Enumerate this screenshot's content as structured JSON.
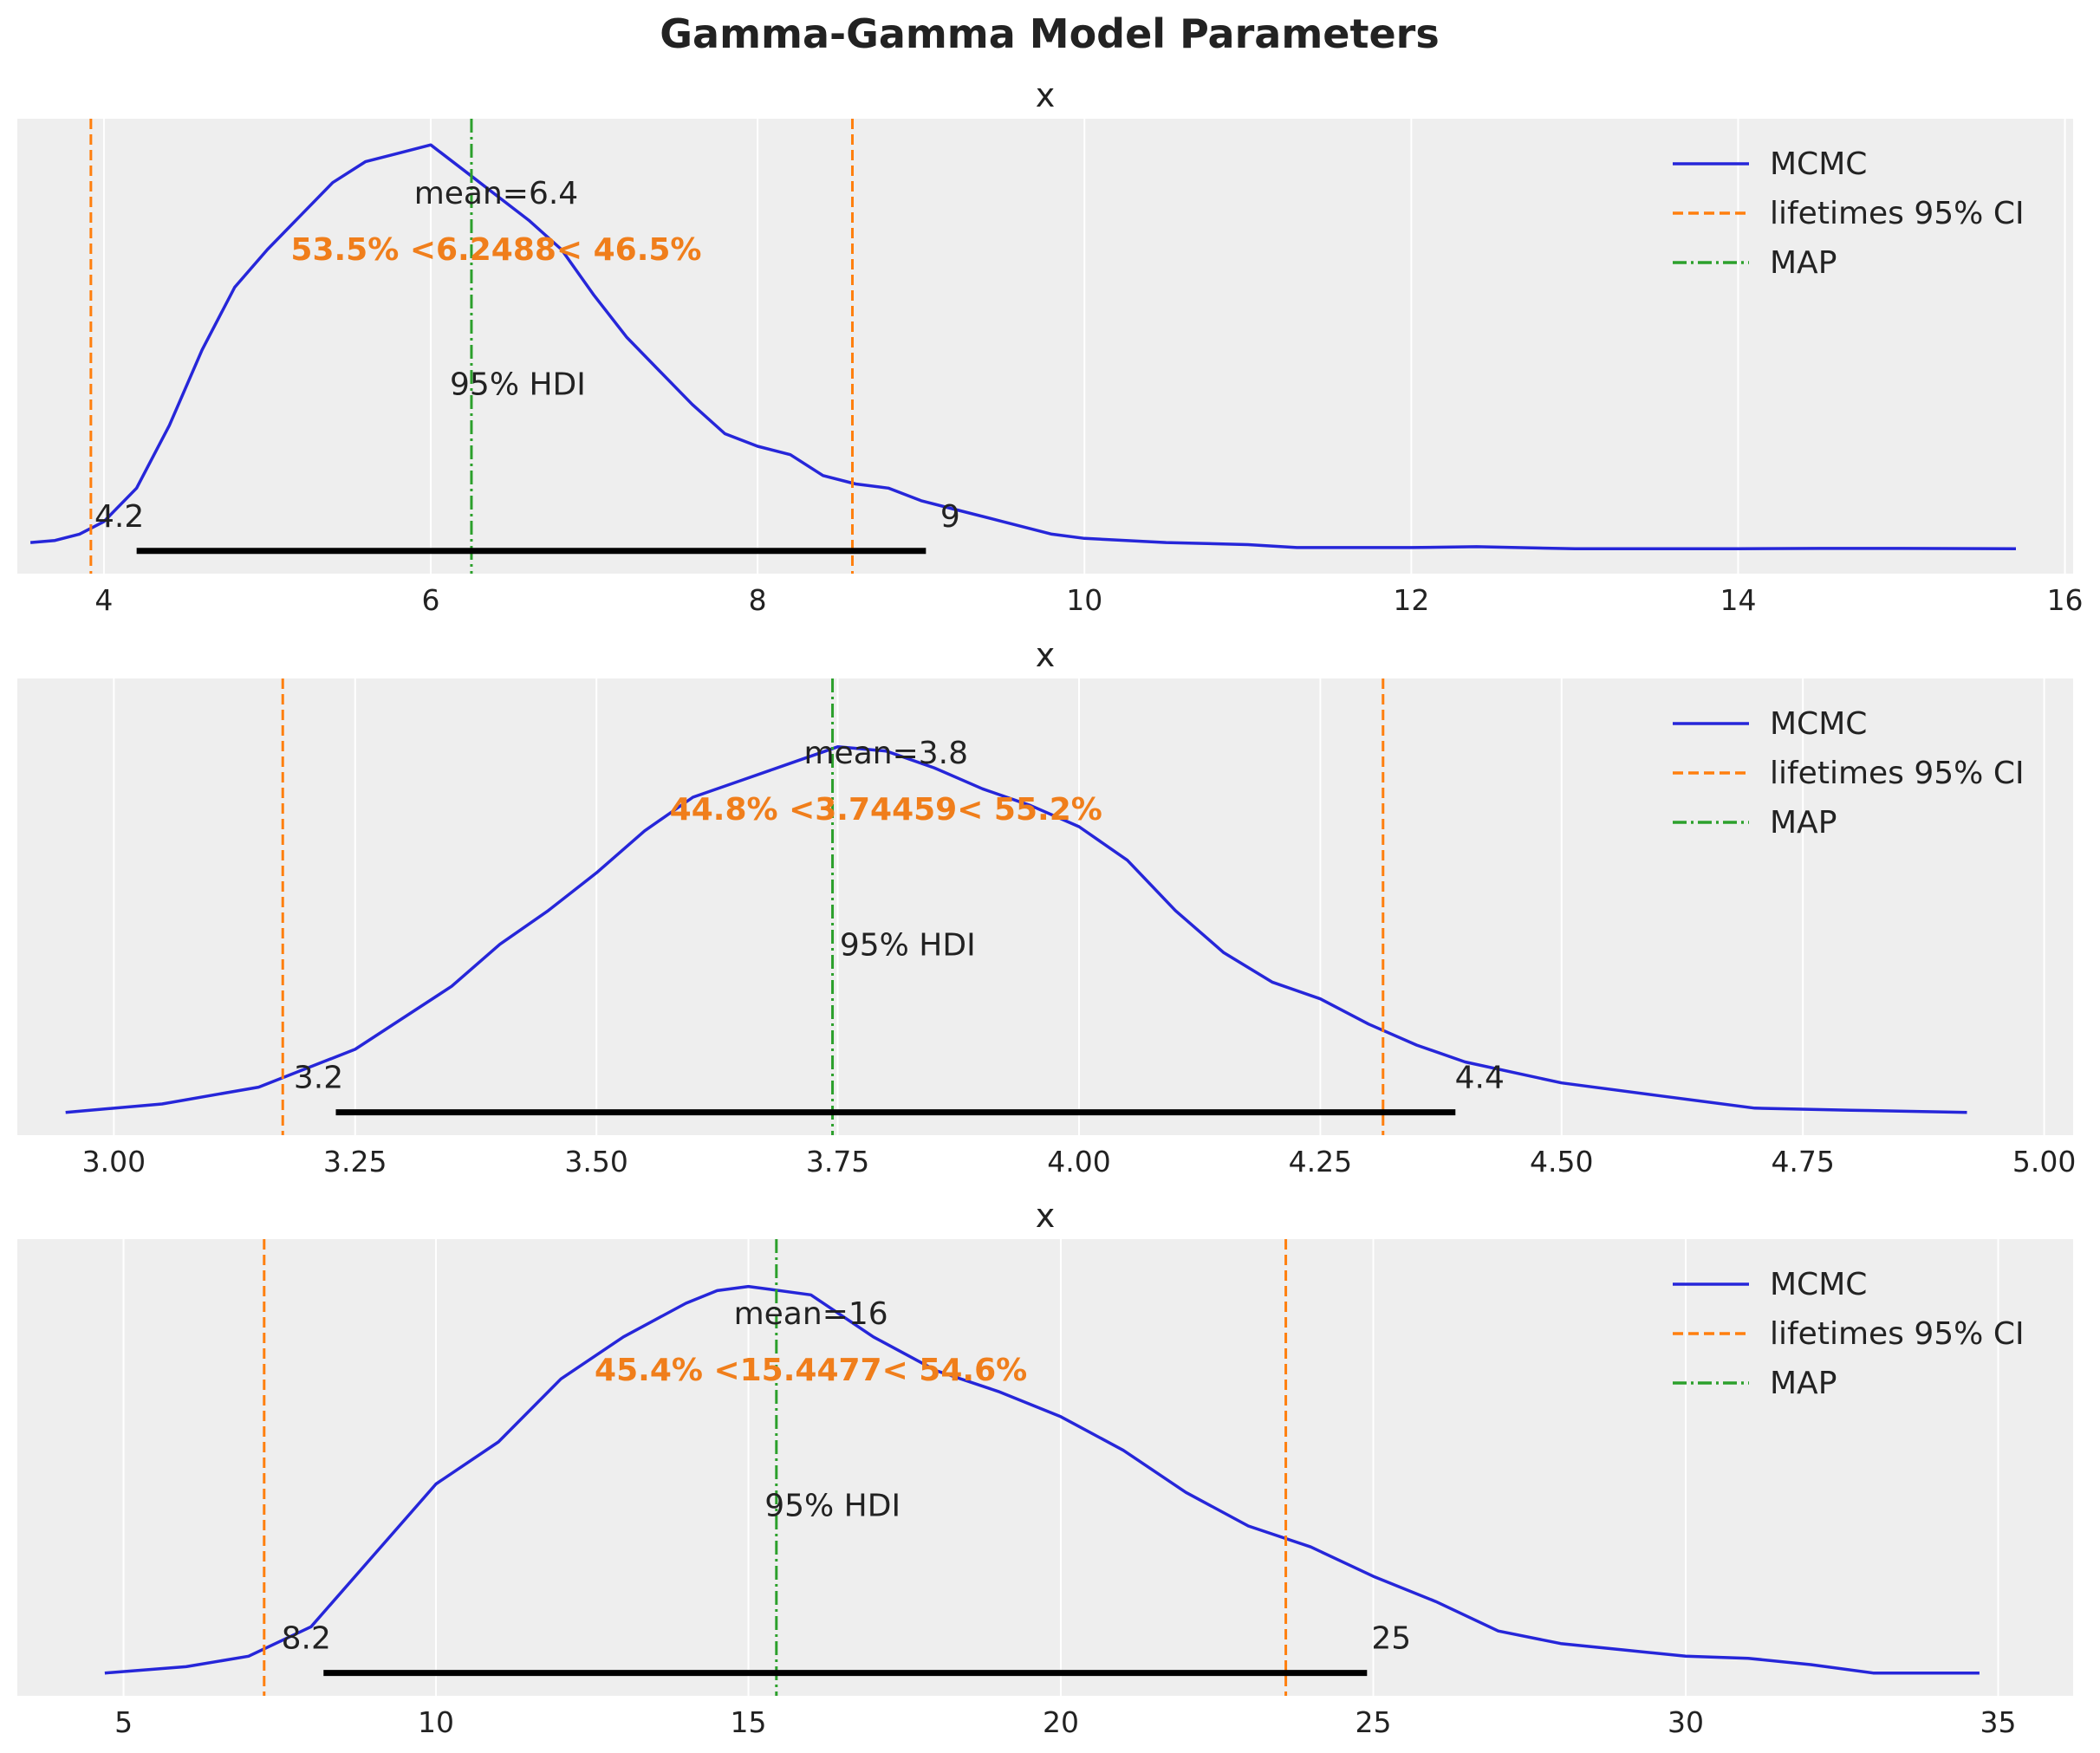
{
  "figure": {
    "title": "Gamma-Gamma Model Parameters"
  },
  "chart_data": [
    {
      "type": "line",
      "title": "x",
      "xlim": [
        3.47,
        16.05
      ],
      "xticks": [
        4,
        6,
        8,
        10,
        12,
        14,
        16
      ],
      "grid": true,
      "legend_position": "top-right",
      "legend": [
        "MCMC",
        "lifetimes 95% CI",
        "MAP"
      ],
      "series": [
        {
          "name": "MCMC",
          "color": "#2626d9",
          "x": [
            3.55,
            3.7,
            3.85,
            4.0,
            4.2,
            4.4,
            4.6,
            4.8,
            5.0,
            5.2,
            5.4,
            5.6,
            5.8,
            6.0,
            6.2,
            6.4,
            6.6,
            6.8,
            7.0,
            7.2,
            7.4,
            7.6,
            7.8,
            8.0,
            8.2,
            8.4,
            8.6,
            8.8,
            9.0,
            9.2,
            9.5,
            9.8,
            10.0,
            10.5,
            11.0,
            11.3,
            12.0,
            12.4,
            13.0,
            14.0,
            14.5,
            15.0,
            15.7
          ],
          "y": [
            0.02,
            0.025,
            0.04,
            0.07,
            0.15,
            0.3,
            0.48,
            0.63,
            0.72,
            0.8,
            0.88,
            0.93,
            0.95,
            0.97,
            0.91,
            0.85,
            0.79,
            0.72,
            0.61,
            0.51,
            0.43,
            0.35,
            0.28,
            0.25,
            0.23,
            0.18,
            0.16,
            0.15,
            0.12,
            0.1,
            0.07,
            0.04,
            0.03,
            0.02,
            0.015,
            0.008,
            0.008,
            0.01,
            0.005,
            0.005,
            0.006,
            0.006,
            0.005
          ]
        }
      ],
      "ci_lines": [
        3.92,
        8.58
      ],
      "map_value": 6.2488,
      "mean_label": "mean=6.4",
      "mean_x": 6.4,
      "ref_label": "53.5% <6.2488< 46.5%",
      "hdi_label": "95% HDI",
      "hdi": [
        4.2,
        9.03
      ],
      "hdi_low_label": "4.2",
      "hdi_high_label": "9"
    },
    {
      "type": "line",
      "title": "x",
      "xlim": [
        2.9,
        5.03
      ],
      "xticks": [
        "3.00",
        "3.25",
        "3.50",
        "3.75",
        "4.00",
        "4.25",
        "4.50",
        "4.75",
        "5.00"
      ],
      "grid": true,
      "legend_position": "top-right",
      "legend": [
        "MCMC",
        "lifetimes 95% CI",
        "MAP"
      ],
      "series": [
        {
          "name": "MCMC",
          "color": "#2626d9",
          "x": [
            2.95,
            3.05,
            3.15,
            3.25,
            3.35,
            3.4,
            3.45,
            3.5,
            3.55,
            3.6,
            3.65,
            3.7,
            3.75,
            3.8,
            3.85,
            3.9,
            3.95,
            4.0,
            4.05,
            4.1,
            4.15,
            4.2,
            4.25,
            4.3,
            4.35,
            4.4,
            4.5,
            4.6,
            4.7,
            4.8,
            4.92
          ],
          "y": [
            0.0,
            0.02,
            0.06,
            0.15,
            0.3,
            0.4,
            0.48,
            0.57,
            0.67,
            0.75,
            0.79,
            0.83,
            0.87,
            0.86,
            0.82,
            0.77,
            0.73,
            0.68,
            0.6,
            0.48,
            0.38,
            0.31,
            0.27,
            0.21,
            0.16,
            0.12,
            0.07,
            0.04,
            0.01,
            0.005,
            0.0
          ]
        }
      ],
      "ci_lines": [
        3.175,
        4.315
      ],
      "map_value": 3.74459,
      "mean_label": "mean=3.8",
      "mean_x": 3.8,
      "ref_label": "44.8% <3.74459< 55.2%",
      "hdi_label": "95% HDI",
      "hdi": [
        3.23,
        4.39
      ],
      "hdi_low_label": "3.2",
      "hdi_high_label": "4.4"
    },
    {
      "type": "line",
      "title": "x",
      "xlim": [
        3.3,
        36.2
      ],
      "xticks": [
        5,
        10,
        15,
        20,
        25,
        30,
        35
      ],
      "grid": true,
      "legend_position": "top-right",
      "legend": [
        "MCMC",
        "lifetimes 95% CI",
        "MAP"
      ],
      "series": [
        {
          "name": "MCMC",
          "color": "#2626d9",
          "x": [
            4.7,
            6.0,
            7.0,
            8.0,
            9.0,
            10.0,
            11.0,
            12.0,
            13.0,
            14.0,
            14.5,
            15.0,
            16.0,
            17.0,
            18.0,
            19.0,
            20.0,
            21.0,
            22.0,
            23.0,
            24.0,
            25.0,
            26.0,
            27.0,
            28.0,
            29.0,
            30.0,
            31.0,
            32.0,
            33.0,
            34.7
          ],
          "y": [
            0.0,
            0.015,
            0.04,
            0.11,
            0.28,
            0.45,
            0.55,
            0.7,
            0.8,
            0.88,
            0.91,
            0.92,
            0.9,
            0.8,
            0.72,
            0.67,
            0.61,
            0.53,
            0.43,
            0.35,
            0.3,
            0.23,
            0.17,
            0.1,
            0.07,
            0.055,
            0.04,
            0.035,
            0.02,
            0.0,
            0.0
          ]
        }
      ],
      "ci_lines": [
        7.25,
        23.6
      ],
      "map_value": 15.4477,
      "mean_label": "mean=16",
      "mean_x": 16,
      "ref_label": "45.4% <15.4477< 54.6%",
      "hdi_label": "95% HDI",
      "hdi": [
        8.2,
        24.9
      ],
      "hdi_low_label": "8.2",
      "hdi_high_label": "25"
    }
  ],
  "colors": {
    "axes_bg": "#eeeeee",
    "grid": "#ffffff",
    "mcmc": "#2626d9",
    "ci": "#ff7f0e",
    "map": "#2ca02c",
    "hdi": "#000000",
    "text": "#222222",
    "ref_text": "#f07e1b"
  }
}
